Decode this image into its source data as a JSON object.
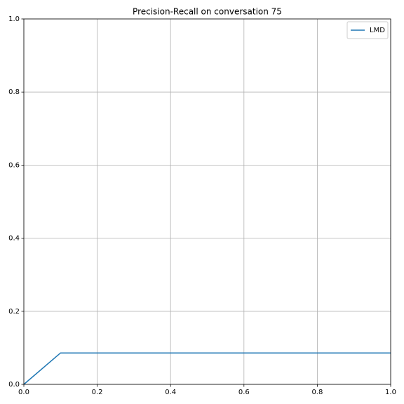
{
  "chart_data": {
    "type": "line",
    "title": "Precision-Recall on conversation 75",
    "x": [
      0,
      0.1,
      1
    ],
    "series": [
      {
        "name": "LMD",
        "color": "#1f77b4",
        "values": [
          0,
          0.086,
          0.086
        ]
      }
    ],
    "xlim": [
      0,
      1
    ],
    "ylim": [
      0,
      1
    ],
    "xticks": [
      {
        "value": 0,
        "label": "0.0"
      },
      0.2,
      0.4,
      0.6,
      0.8,
      {
        "value": 1,
        "label": "1.0"
      }
    ],
    "yticks": [
      {
        "value": 0,
        "label": "0.0"
      },
      0.2,
      0.4,
      0.6,
      0.8,
      {
        "value": 1,
        "label": "1.0"
      }
    ],
    "grid": true,
    "legend": "upper right"
  }
}
